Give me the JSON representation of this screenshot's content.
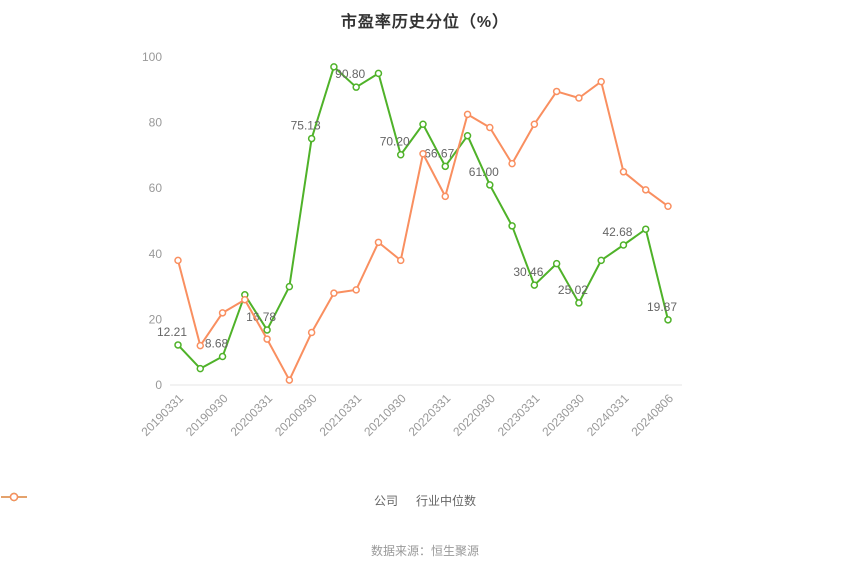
{
  "title": "市盈率历史分位（%）",
  "footer": "数据来源：恒生聚源",
  "legend": [
    {
      "label": "公司",
      "color": "#4fb229"
    },
    {
      "label": "行业中位数",
      "color": "#f98f60"
    }
  ],
  "colors": {
    "title_text": "#333333",
    "axis_label": "#999999",
    "data_label": "#666666",
    "axis_line": "#e6e6e6",
    "background": "#ffffff"
  },
  "chart_data": {
    "type": "line",
    "title": "市盈率历史分位（%）",
    "xlabel": "",
    "ylabel": "",
    "ylim": [
      0,
      100
    ],
    "yticks": [
      0,
      20,
      40,
      60,
      80,
      100
    ],
    "grid": false,
    "legend_position": "bottom",
    "x_tick_labels": [
      "20190331",
      "20190930",
      "20200331",
      "20200930",
      "20210331",
      "20210930",
      "20220331",
      "20220930",
      "20230331",
      "20230930",
      "20240331",
      "20240806"
    ],
    "x_tick_indices": [
      0,
      2,
      4,
      6,
      8,
      10,
      12,
      14,
      16,
      18,
      20,
      22
    ],
    "series": [
      {
        "name": "公司",
        "color": "#4fb229",
        "values": [
          12.21,
          5,
          8.68,
          27.5,
          16.78,
          30,
          75.13,
          97,
          90.8,
          95,
          70.2,
          79.5,
          66.67,
          76,
          61.0,
          48.5,
          30.46,
          37,
          25.02,
          38,
          42.68,
          47.5,
          19.87
        ],
        "point_labels": [
          "12.21",
          null,
          "8.68",
          null,
          "16.78",
          null,
          "75.13",
          null,
          "90.80",
          null,
          "70.20",
          null,
          "66.67",
          null,
          "61.00",
          null,
          "30.46",
          null,
          "25.02",
          null,
          "42.68",
          null,
          "19.87"
        ]
      },
      {
        "name": "行业中位数",
        "color": "#f98f60",
        "values": [
          38,
          12,
          22,
          26,
          14,
          1.5,
          16,
          28,
          29,
          43.5,
          38,
          70.5,
          57.5,
          82.5,
          78.5,
          67.5,
          79.5,
          89.5,
          87.5,
          92.5,
          65,
          59.5,
          54.5
        ],
        "point_labels": []
      }
    ]
  }
}
